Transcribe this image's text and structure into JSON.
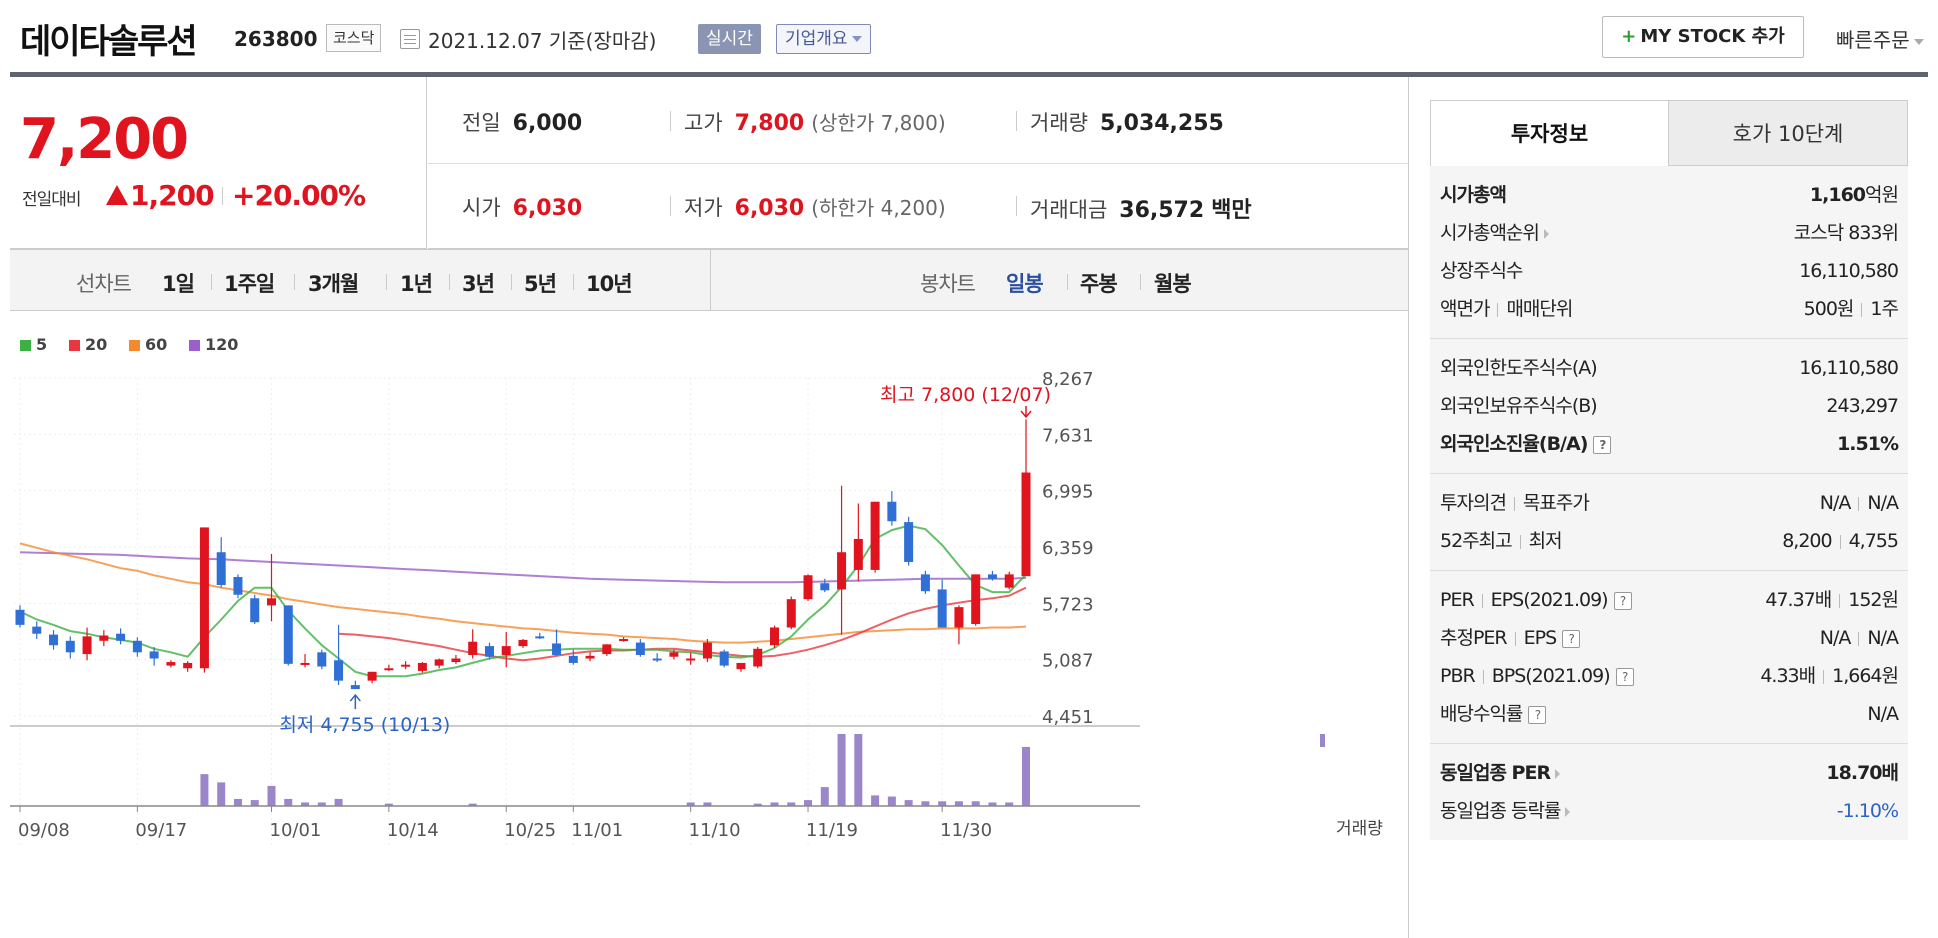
{
  "header": {
    "company_name": "데이타솔루션",
    "stock_code": "263800",
    "market": "코스닥",
    "date_text": "2021.12.07 기준(장마감)",
    "realtime_label": "실시간",
    "company_overview_label": "기업개요",
    "mystock_plus": "+",
    "mystock_label": "MY STOCK 추가",
    "quick_order_label": "빠른주문"
  },
  "price": {
    "current": "7,200",
    "change_label": "전일대비",
    "change": "1,200",
    "change_pct": "+20.00%",
    "prev_label": "전일",
    "prev": "6,000",
    "high_label": "고가",
    "high": "7,800",
    "upper_limit": "(상한가 7,800)",
    "volume_label": "거래량",
    "volume": "5,034,255",
    "open_label": "시가",
    "open": "6,030",
    "low_label": "저가",
    "low": "6,030",
    "lower_limit": "(하한가 4,200)",
    "amount_label": "거래대금",
    "amount": "36,572",
    "amount_unit": "백만"
  },
  "period_bar": {
    "line_label": "선차트",
    "line_periods": [
      "1일",
      "1주일",
      "3개월",
      "1년",
      "3년",
      "5년",
      "10년"
    ],
    "candle_label": "봉차트",
    "candle_periods": [
      "일봉",
      "주봉",
      "월봉"
    ],
    "candle_selected": "일봉"
  },
  "chart_data": {
    "type": "candlestick",
    "legend": [
      {
        "name": "5",
        "color": "#3cb043"
      },
      {
        "name": "20",
        "color": "#e8383d"
      },
      {
        "name": "60",
        "color": "#f5892f"
      },
      {
        "name": "120",
        "color": "#9b5fc9"
      }
    ],
    "y_ticks": [
      8267,
      7631,
      6995,
      6359,
      5723,
      5087,
      4451
    ],
    "y_tick_labels": [
      "8,267",
      "7,631",
      "6,995",
      "6,359",
      "5,723",
      "5,087",
      "4,451"
    ],
    "ylim": [
      4451,
      8267
    ],
    "x_tick_labels": [
      "09/08",
      "09/17",
      "10/01",
      "10/14",
      "10/25",
      "11/01",
      "11/10",
      "11/19",
      "11/30"
    ],
    "x_tick_index": [
      0,
      7,
      15,
      22,
      29,
      33,
      40,
      47,
      55
    ],
    "annotation_high": "최고 7,800 (12/07)",
    "annotation_low": "최저 4,755 (10/13)",
    "volume_label": "거래량",
    "candles": [
      {
        "o": 5650,
        "h": 5700,
        "c": 5480,
        "l": 5450
      },
      {
        "o": 5460,
        "h": 5520,
        "c": 5380,
        "l": 5320
      },
      {
        "o": 5370,
        "h": 5420,
        "c": 5250,
        "l": 5200
      },
      {
        "o": 5300,
        "h": 5350,
        "c": 5170,
        "l": 5100
      },
      {
        "o": 5150,
        "h": 5450,
        "c": 5350,
        "l": 5080
      },
      {
        "o": 5300,
        "h": 5420,
        "c": 5360,
        "l": 5240
      },
      {
        "o": 5380,
        "h": 5440,
        "c": 5300,
        "l": 5260
      },
      {
        "o": 5300,
        "h": 5340,
        "c": 5170,
        "l": 5120
      },
      {
        "o": 5180,
        "h": 5230,
        "c": 5100,
        "l": 5020
      },
      {
        "o": 5020,
        "h": 5080,
        "c": 5060,
        "l": 5000
      },
      {
        "o": 4990,
        "h": 5070,
        "c": 5050,
        "l": 4950
      },
      {
        "o": 4990,
        "h": 6580,
        "c": 6580,
        "l": 4940
      },
      {
        "o": 6300,
        "h": 6470,
        "c": 5930,
        "l": 5900
      },
      {
        "o": 6020,
        "h": 6050,
        "c": 5820,
        "l": 5780
      },
      {
        "o": 5780,
        "h": 5820,
        "c": 5510,
        "l": 5490
      },
      {
        "o": 5700,
        "h": 6280,
        "c": 5780,
        "l": 5520
      },
      {
        "o": 5700,
        "h": 5700,
        "c": 5040,
        "l": 5020
      },
      {
        "o": 5040,
        "h": 5150,
        "c": 5050,
        "l": 5000
      },
      {
        "o": 5170,
        "h": 5200,
        "c": 5010,
        "l": 4980
      },
      {
        "o": 5080,
        "h": 5480,
        "c": 4850,
        "l": 4800
      },
      {
        "o": 4800,
        "h": 4850,
        "c": 4755,
        "l": 4755
      },
      {
        "o": 4850,
        "h": 4950,
        "c": 4950,
        "l": 4820
      },
      {
        "o": 4980,
        "h": 5030,
        "c": 4990,
        "l": 4960
      },
      {
        "o": 5010,
        "h": 5070,
        "c": 5030,
        "l": 4980
      },
      {
        "o": 4960,
        "h": 5060,
        "c": 5050,
        "l": 4940
      },
      {
        "o": 5020,
        "h": 5100,
        "c": 5090,
        "l": 4990
      },
      {
        "o": 5060,
        "h": 5140,
        "c": 5100,
        "l": 5040
      },
      {
        "o": 5140,
        "h": 5430,
        "c": 5290,
        "l": 5100
      },
      {
        "o": 5240,
        "h": 5280,
        "c": 5120,
        "l": 5090
      },
      {
        "o": 5140,
        "h": 5400,
        "c": 5240,
        "l": 5000
      },
      {
        "o": 5240,
        "h": 5320,
        "c": 5310,
        "l": 5220
      },
      {
        "o": 5350,
        "h": 5390,
        "c": 5340,
        "l": 5320
      },
      {
        "o": 5270,
        "h": 5430,
        "c": 5140,
        "l": 5130
      },
      {
        "o": 5130,
        "h": 5200,
        "c": 5050,
        "l": 5030
      },
      {
        "o": 5100,
        "h": 5170,
        "c": 5130,
        "l": 5070
      },
      {
        "o": 5150,
        "h": 5260,
        "c": 5260,
        "l": 5130
      },
      {
        "o": 5300,
        "h": 5340,
        "c": 5320,
        "l": 5290
      },
      {
        "o": 5280,
        "h": 5320,
        "c": 5140,
        "l": 5120
      },
      {
        "o": 5100,
        "h": 5160,
        "c": 5080,
        "l": 5060
      },
      {
        "o": 5120,
        "h": 5200,
        "c": 5170,
        "l": 5090
      },
      {
        "o": 5090,
        "h": 5170,
        "c": 5100,
        "l": 5030
      },
      {
        "o": 5100,
        "h": 5320,
        "c": 5280,
        "l": 5060
      },
      {
        "o": 5180,
        "h": 5200,
        "c": 5020,
        "l": 5000
      },
      {
        "o": 4980,
        "h": 5050,
        "c": 5050,
        "l": 4950
      },
      {
        "o": 5010,
        "h": 5230,
        "c": 5210,
        "l": 4990
      },
      {
        "o": 5250,
        "h": 5470,
        "c": 5450,
        "l": 5220
      },
      {
        "o": 5450,
        "h": 5800,
        "c": 5770,
        "l": 5430
      },
      {
        "o": 5770,
        "h": 6050,
        "c": 6040,
        "l": 5750
      },
      {
        "o": 5950,
        "h": 6000,
        "c": 5870,
        "l": 5850
      },
      {
        "o": 5880,
        "h": 7050,
        "c": 6300,
        "l": 5370
      },
      {
        "o": 6100,
        "h": 6850,
        "c": 6450,
        "l": 5970
      },
      {
        "o": 6100,
        "h": 6870,
        "c": 6870,
        "l": 6070
      },
      {
        "o": 6870,
        "h": 6990,
        "c": 6650,
        "l": 6600
      },
      {
        "o": 6640,
        "h": 6700,
        "c": 6190,
        "l": 6150
      },
      {
        "o": 6050,
        "h": 6090,
        "c": 5860,
        "l": 5830
      },
      {
        "o": 5880,
        "h": 5990,
        "c": 5450,
        "l": 5450
      },
      {
        "o": 5450,
        "h": 5700,
        "c": 5680,
        "l": 5260
      },
      {
        "o": 5490,
        "h": 6050,
        "c": 6050,
        "l": 5470
      },
      {
        "o": 6050,
        "h": 6090,
        "c": 6000,
        "l": 5980
      },
      {
        "o": 5900,
        "h": 6080,
        "c": 6050,
        "l": 5880
      },
      {
        "o": 6030,
        "h": 7800,
        "c": 7200,
        "l": 6030
      }
    ],
    "volume": [
      0,
      0,
      0,
      0,
      0,
      0,
      0,
      0,
      0,
      0,
      0,
      27,
      20,
      6,
      5,
      17,
      6,
      3,
      3,
      6,
      0,
      0,
      2,
      0,
      0,
      0,
      0,
      2,
      0,
      0,
      0,
      0,
      0,
      0,
      0,
      0,
      0,
      0,
      0,
      0,
      3,
      3,
      0,
      0,
      2,
      3,
      3,
      5,
      16,
      61,
      61,
      9,
      8,
      5,
      4,
      4,
      4,
      4,
      3,
      3,
      50
    ],
    "ma5": [
      5630,
      5540,
      5480,
      5410,
      5380,
      5340,
      5310,
      5280,
      5210,
      5170,
      5120,
      5340,
      5540,
      5750,
      5900,
      5900,
      5640,
      5440,
      5250,
      5100,
      4950,
      4900,
      4900,
      4900,
      4930,
      4970,
      5000,
      5050,
      5100,
      5130,
      5160,
      5190,
      5200,
      5210,
      5210,
      5210,
      5200,
      5200,
      5200,
      5180,
      5170,
      5140,
      5120,
      5110,
      5140,
      5220,
      5350,
      5540,
      5700,
      5910,
      6150,
      6450,
      6550,
      6600,
      6560,
      6380,
      6150,
      5930,
      5850,
      5850,
      6050
    ],
    "ma20": [
      null,
      null,
      null,
      null,
      null,
      null,
      null,
      null,
      null,
      null,
      null,
      null,
      null,
      null,
      null,
      null,
      null,
      null,
      null,
      5380,
      5370,
      5350,
      5330,
      5300,
      5270,
      5240,
      5200,
      5160,
      5130,
      5100,
      5080,
      5100,
      5130,
      5160,
      5180,
      5190,
      5190,
      5200,
      5210,
      5210,
      5190,
      5170,
      5150,
      5130,
      5120,
      5130,
      5160,
      5200,
      5250,
      5310,
      5380,
      5460,
      5540,
      5610,
      5660,
      5700,
      5730,
      5760,
      5780,
      5810,
      5900
    ],
    "ma60": [
      6400,
      6350,
      6300,
      6260,
      6220,
      6170,
      6120,
      6090,
      6040,
      6000,
      5960,
      5940,
      5900,
      5870,
      5840,
      5810,
      5770,
      5740,
      5710,
      5680,
      5660,
      5640,
      5620,
      5600,
      5570,
      5550,
      5520,
      5500,
      5480,
      5460,
      5440,
      5430,
      5410,
      5390,
      5380,
      5370,
      5350,
      5340,
      5330,
      5320,
      5300,
      5290,
      5280,
      5280,
      5290,
      5300,
      5320,
      5340,
      5360,
      5380,
      5400,
      5410,
      5420,
      5430,
      5430,
      5440,
      5440,
      5440,
      5450,
      5450,
      5460
    ],
    "ma120": [
      6300,
      6295,
      6290,
      6285,
      6280,
      6275,
      6270,
      6260,
      6250,
      6240,
      6230,
      6225,
      6220,
      6210,
      6200,
      6190,
      6180,
      6170,
      6160,
      6150,
      6140,
      6130,
      6120,
      6110,
      6100,
      6090,
      6080,
      6070,
      6060,
      6050,
      6040,
      6030,
      6020,
      6010,
      6000,
      5995,
      5990,
      5985,
      5980,
      5975,
      5970,
      5965,
      5960,
      5960,
      5960,
      5960,
      5960,
      5965,
      5970,
      5975,
      5980,
      5985,
      5990,
      5995,
      6000,
      6000,
      6000,
      6000,
      6000,
      6000,
      6010
    ]
  },
  "right_panel": {
    "tabs": [
      "투자정보",
      "호가 10단계"
    ],
    "market_cap_label": "시가총액",
    "market_cap": "1,160",
    "market_cap_unit": "억원",
    "rank_label": "시가총액순위",
    "rank": "코스닥 833위",
    "shares_label": "상장주식수",
    "shares": "16,110,580",
    "par_label": "액면가",
    "unit_label": "매매단위",
    "par": "500원",
    "unit": "1주",
    "foreign_limit_label": "외국인한도주식수(A)",
    "foreign_limit": "16,110,580",
    "foreign_hold_label": "외국인보유주식수(B)",
    "foreign_hold": "243,297",
    "foreign_ratio_label": "외국인소진율(B/A)",
    "foreign_ratio": "1.51%",
    "opinion_label": "투자의견",
    "target_label": "목표주가",
    "opinion": "N/A",
    "target": "N/A",
    "high52_label": "52주최고",
    "low52_label": "최저",
    "high52": "8,200",
    "low52": "4,755",
    "per_label": "PER",
    "eps_label": "EPS(2021.09)",
    "per": "47.37배",
    "eps": "152원",
    "est_per_label": "추정PER",
    "est_eps_label": "EPS",
    "est_per": "N/A",
    "est_eps": "N/A",
    "pbr_label": "PBR",
    "bps_label": "BPS(2021.09)",
    "pbr": "4.33배",
    "bps": "1,664원",
    "dividend_label": "배당수익률",
    "dividend": "N/A",
    "industry_per_label": "동일업종 PER",
    "industry_per": "18.70배",
    "industry_change_label": "동일업종 등락률",
    "industry_change": "-1.10%",
    "question_mark": "?"
  }
}
